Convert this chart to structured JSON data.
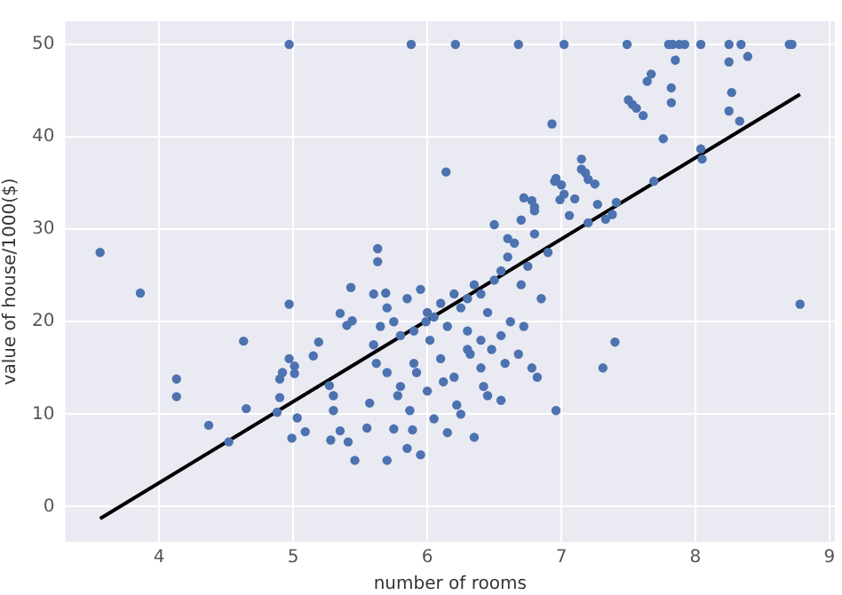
{
  "chart_data": {
    "type": "scatter",
    "xlabel": "number of rooms",
    "ylabel": "value of house/1000($)",
    "xlim": [
      3.3,
      9.04
    ],
    "ylim": [
      -3.8,
      52.5
    ],
    "xticks": [
      4,
      5,
      6,
      7,
      8,
      9
    ],
    "yticks": [
      0,
      10,
      20,
      30,
      40,
      50
    ],
    "grid": true,
    "series": [
      {
        "marker": "circle",
        "color": "#4c72b0",
        "x": [
          3.56,
          3.86,
          4.13,
          4.13,
          4.37,
          4.52,
          4.63,
          4.65,
          4.88,
          4.9,
          4.9,
          4.92,
          4.97,
          4.97,
          4.99,
          5.01,
          5.01,
          5.03,
          5.09,
          5.15,
          5.19,
          5.27,
          5.28,
          5.3,
          5.3,
          5.35,
          5.35,
          5.4,
          5.41,
          5.43,
          5.46,
          5.44,
          5.55,
          5.57,
          5.6,
          5.63,
          5.63,
          5.7,
          5.69,
          5.75,
          5.85,
          5.87,
          5.89,
          5.95,
          5.99,
          5.6,
          5.65,
          5.7,
          5.75,
          5.8,
          5.85,
          5.9,
          5.95,
          6.0,
          6.05,
          6.1,
          6.15,
          6.2,
          6.25,
          6.3,
          6.35,
          6.4,
          6.45,
          6.5,
          5.7,
          5.8,
          5.9,
          6.0,
          6.1,
          6.2,
          6.3,
          6.4,
          5.62,
          5.78,
          5.92,
          6.02,
          6.12,
          6.22,
          6.32,
          6.42,
          6.55,
          6.6,
          6.65,
          6.7,
          6.75,
          6.8,
          6.85,
          6.9,
          6.55,
          6.62,
          6.68,
          6.72,
          6.78,
          6.82,
          6.5,
          6.6,
          6.7,
          6.8,
          6.05,
          6.15,
          6.25,
          6.35,
          6.45,
          6.55,
          6.3,
          6.4,
          6.48,
          6.58,
          6.14,
          6.93,
          7.15,
          7.15,
          7.18,
          7.2,
          7.25,
          7.1,
          7.0,
          7.02,
          6.99,
          7.06,
          6.95,
          6.96,
          7.27,
          7.38,
          7.41,
          7.33,
          7.2,
          6.78,
          6.8,
          6.72,
          6.96,
          7.4,
          7.31,
          8.78,
          7.67,
          7.64,
          7.82,
          7.82,
          7.5,
          7.53,
          7.56,
          7.61,
          8.27,
          8.25,
          8.33,
          7.76,
          8.04,
          8.05,
          7.69,
          7.85,
          8.25,
          8.39,
          4.97,
          5.88,
          6.21,
          6.68,
          7.02,
          7.49,
          7.8,
          7.83,
          7.88,
          7.92,
          8.04,
          8.25,
          8.34,
          8.7,
          8.72
        ],
        "values": [
          27.5,
          23.1,
          13.8,
          11.9,
          8.8,
          7.0,
          17.9,
          10.6,
          10.2,
          11.8,
          13.8,
          14.5,
          16.0,
          21.9,
          7.4,
          15.2,
          14.4,
          9.6,
          8.1,
          16.3,
          17.8,
          13.1,
          7.2,
          12.0,
          10.4,
          20.9,
          8.2,
          19.6,
          7.0,
          23.7,
          5.0,
          20.1,
          8.5,
          11.2,
          23.0,
          27.9,
          26.5,
          5.0,
          23.1,
          8.4,
          6.3,
          10.4,
          8.3,
          5.6,
          20.0,
          17.5,
          19.5,
          21.5,
          20.0,
          18.5,
          22.5,
          19.0,
          23.5,
          21.0,
          20.5,
          22.0,
          19.5,
          23.0,
          21.5,
          22.5,
          24.0,
          23.0,
          21.0,
          24.5,
          14.5,
          13.0,
          15.5,
          12.5,
          16.0,
          14.0,
          17.0,
          15.0,
          15.5,
          12.0,
          14.5,
          18.0,
          13.5,
          11.0,
          16.5,
          13.0,
          25.5,
          27.0,
          28.5,
          24.0,
          26.0,
          29.5,
          22.5,
          27.5,
          18.5,
          20.0,
          16.5,
          19.5,
          15.0,
          14.0,
          30.5,
          29.0,
          31.0,
          32.0,
          9.5,
          8.0,
          10.0,
          7.5,
          12.0,
          11.5,
          19.0,
          18.0,
          17.0,
          15.5,
          36.2,
          41.4,
          37.6,
          36.5,
          36.1,
          35.4,
          34.9,
          33.3,
          34.8,
          33.8,
          33.2,
          31.5,
          35.2,
          35.5,
          32.7,
          31.6,
          32.9,
          31.1,
          30.7,
          33.1,
          32.4,
          33.4,
          10.4,
          17.8,
          15.0,
          21.9,
          46.8,
          46.0,
          45.3,
          43.7,
          44.0,
          43.5,
          43.1,
          42.3,
          44.8,
          42.8,
          41.7,
          39.8,
          38.7,
          37.6,
          35.2,
          48.3,
          48.1,
          48.7,
          50,
          50,
          50,
          50,
          50,
          50,
          50,
          50,
          50,
          50,
          50,
          50,
          50,
          50,
          50
        ]
      },
      {
        "type": "line",
        "marker": "none",
        "color": "#000000",
        "x": [
          3.56,
          8.78
        ],
        "values": [
          -1.3,
          44.6
        ]
      }
    ]
  }
}
